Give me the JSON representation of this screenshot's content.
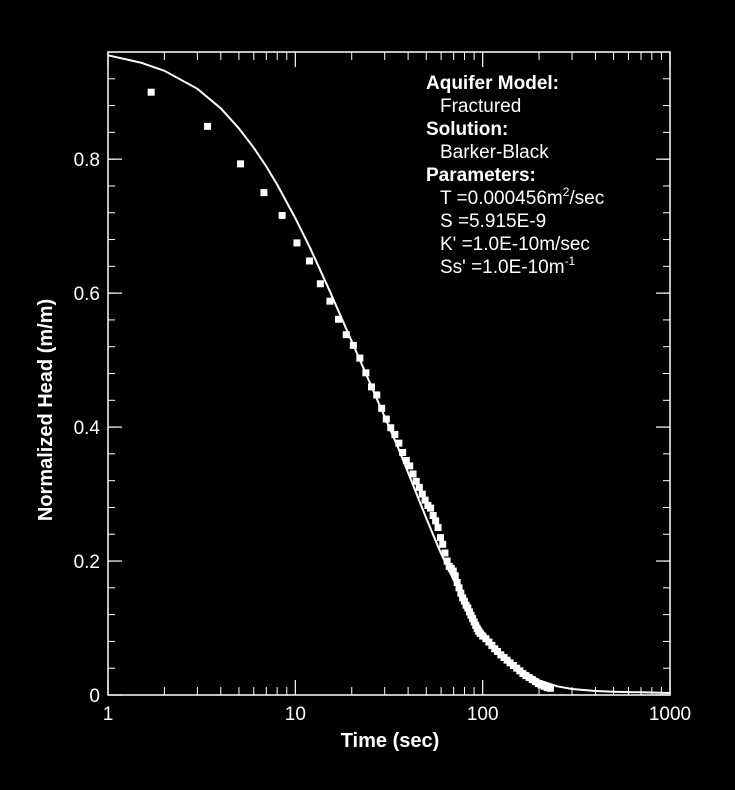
{
  "chart_data": {
    "type": "scatter",
    "title": "",
    "xlabel": "Time (sec)",
    "ylabel": "Normalized Head (m/m)",
    "xscale": "log",
    "xlim": [
      1,
      1000
    ],
    "ylim": [
      0,
      0.96
    ],
    "x_ticks": [
      {
        "value": 1,
        "label": "1"
      },
      {
        "value": 10,
        "label": "10"
      },
      {
        "value": 100,
        "label": "100"
      },
      {
        "value": 1000,
        "label": "1000"
      }
    ],
    "y_ticks": [
      {
        "value": 0,
        "label": "0"
      },
      {
        "value": 0.2,
        "label": "0.2"
      },
      {
        "value": 0.4,
        "label": "0.4"
      },
      {
        "value": 0.6,
        "label": "0.6"
      },
      {
        "value": 0.8,
        "label": "0.8"
      }
    ],
    "grid": false,
    "colors": {
      "background": "#000000",
      "foreground": "#ffffff"
    },
    "observed": {
      "marker": "square",
      "points": [
        [
          1.7,
          0.9
        ],
        [
          3.4,
          0.849
        ],
        [
          5.1,
          0.793
        ],
        [
          6.8,
          0.75
        ],
        [
          8.5,
          0.716
        ],
        [
          10.2,
          0.675
        ],
        [
          11.9,
          0.648
        ],
        [
          13.6,
          0.614
        ],
        [
          15.3,
          0.588
        ],
        [
          17.0,
          0.561
        ],
        [
          18.7,
          0.538
        ],
        [
          20.4,
          0.522
        ],
        [
          22.1,
          0.503
        ],
        [
          23.8,
          0.481
        ],
        [
          25.5,
          0.46
        ],
        [
          27.2,
          0.448
        ],
        [
          28.9,
          0.428
        ],
        [
          30.6,
          0.412
        ],
        [
          32.3,
          0.399
        ],
        [
          34.0,
          0.389
        ],
        [
          35.7,
          0.376
        ],
        [
          37.4,
          0.362
        ],
        [
          39.1,
          0.35
        ],
        [
          40.8,
          0.342
        ],
        [
          42.5,
          0.33
        ],
        [
          44.2,
          0.319
        ],
        [
          45.9,
          0.31
        ],
        [
          47.6,
          0.3
        ],
        [
          49.3,
          0.291
        ],
        [
          51.0,
          0.283
        ],
        [
          52.7,
          0.279
        ],
        [
          54.4,
          0.268
        ],
        [
          56.1,
          0.26
        ],
        [
          57.8,
          0.25
        ],
        [
          59.5,
          0.235
        ],
        [
          61.2,
          0.225
        ],
        [
          62.9,
          0.212
        ],
        [
          64.6,
          0.2
        ],
        [
          66.3,
          0.192
        ],
        [
          68.0,
          0.189
        ],
        [
          69.7,
          0.185
        ],
        [
          71.4,
          0.178
        ],
        [
          73.1,
          0.168
        ],
        [
          74.8,
          0.16
        ],
        [
          76.5,
          0.152
        ],
        [
          78.2,
          0.145
        ],
        [
          79.9,
          0.14
        ],
        [
          81.6,
          0.134
        ],
        [
          83.3,
          0.13
        ],
        [
          85.0,
          0.124
        ],
        [
          86.7,
          0.119
        ],
        [
          88.4,
          0.114
        ],
        [
          90.1,
          0.109
        ],
        [
          91.8,
          0.104
        ],
        [
          93.5,
          0.099
        ],
        [
          95.2,
          0.095
        ],
        [
          97.0,
          0.092
        ],
        [
          100.0,
          0.088
        ],
        [
          104.0,
          0.084
        ],
        [
          108.0,
          0.079
        ],
        [
          112.0,
          0.074
        ],
        [
          116.0,
          0.069
        ],
        [
          120.0,
          0.065
        ],
        [
          125.0,
          0.06
        ],
        [
          130.0,
          0.056
        ],
        [
          135.0,
          0.052
        ],
        [
          140.0,
          0.048
        ],
        [
          146.0,
          0.044
        ],
        [
          152.0,
          0.04
        ],
        [
          158.0,
          0.036
        ],
        [
          164.0,
          0.032
        ],
        [
          170.0,
          0.029
        ],
        [
          177.0,
          0.026
        ],
        [
          184.0,
          0.023
        ],
        [
          191.0,
          0.02
        ],
        [
          198.0,
          0.017
        ],
        [
          205.0,
          0.015
        ],
        [
          213.0,
          0.013
        ],
        [
          221.0,
          0.011
        ],
        [
          230.0,
          0.01
        ]
      ]
    },
    "fitted": {
      "line": "solid",
      "points": [
        [
          1,
          0.955
        ],
        [
          1.5,
          0.944
        ],
        [
          2,
          0.932
        ],
        [
          3,
          0.905
        ],
        [
          4,
          0.876
        ],
        [
          5,
          0.846
        ],
        [
          6,
          0.817
        ],
        [
          7,
          0.789
        ],
        [
          8,
          0.762
        ],
        [
          10,
          0.712
        ],
        [
          12,
          0.667
        ],
        [
          15,
          0.608
        ],
        [
          20,
          0.528
        ],
        [
          25,
          0.466
        ],
        [
          30,
          0.415
        ],
        [
          35,
          0.372
        ],
        [
          40,
          0.332
        ],
        [
          45,
          0.296
        ],
        [
          50,
          0.264
        ],
        [
          55,
          0.236
        ],
        [
          60,
          0.211
        ],
        [
          70,
          0.172
        ],
        [
          80,
          0.141
        ],
        [
          90,
          0.115
        ],
        [
          100,
          0.095
        ],
        [
          120,
          0.068
        ],
        [
          150,
          0.042
        ],
        [
          200,
          0.022
        ],
        [
          250,
          0.013
        ],
        [
          300,
          0.009
        ],
        [
          400,
          0.006
        ],
        [
          500,
          0.005
        ],
        [
          700,
          0.004
        ],
        [
          1000,
          0.003
        ]
      ]
    },
    "legend": {
      "placement": "top-right",
      "aquifer_model_label": "Aquifer Model:",
      "aquifer_model_value": "Fractured",
      "solution_label": "Solution:",
      "solution_value": "Barker-Black",
      "parameters_label": "Parameters:",
      "param_T": "T =0.000456m",
      "param_T_sup": "2",
      "param_T_unit": "/sec",
      "param_S": "S =5.915E-9",
      "param_K": "K' =1.0E-10m/sec",
      "param_Ss": "Ss' =1.0E-10m",
      "param_Ss_sup": "-1"
    }
  }
}
